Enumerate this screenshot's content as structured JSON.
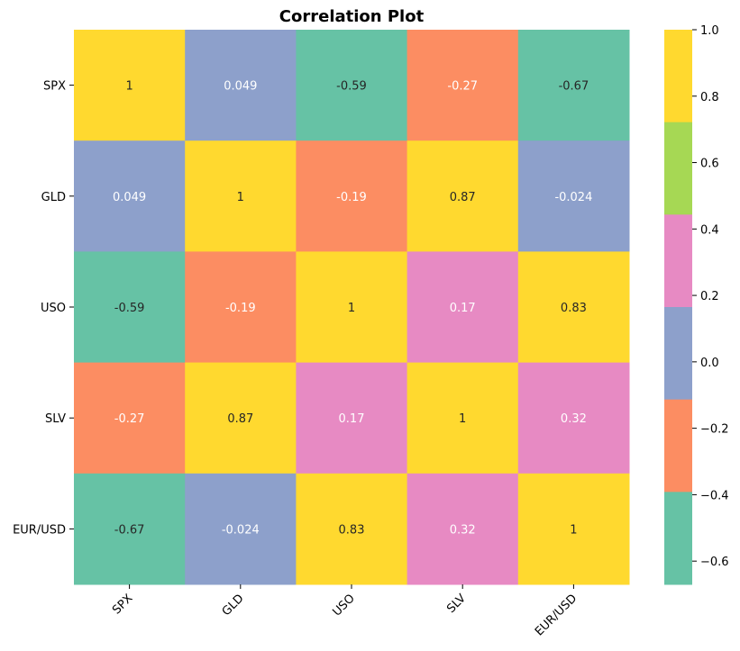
{
  "chart_data": {
    "type": "heatmap",
    "title": "Correlation Plot",
    "categories": [
      "SPX",
      "GLD",
      "USO",
      "SLV",
      "EUR/USD"
    ],
    "rows": [
      "SPX",
      "GLD",
      "USO",
      "SLV",
      "EUR/USD"
    ],
    "values": [
      [
        1,
        0.049,
        -0.59,
        -0.27,
        -0.67
      ],
      [
        0.049,
        1,
        -0.19,
        0.87,
        -0.024
      ],
      [
        -0.59,
        -0.19,
        1,
        0.17,
        0.83
      ],
      [
        -0.27,
        0.87,
        0.17,
        1,
        0.32
      ],
      [
        -0.67,
        -0.024,
        0.83,
        0.32,
        1
      ]
    ],
    "labels": [
      [
        "1",
        "0.049",
        "-0.59",
        "-0.27",
        "-0.67"
      ],
      [
        "0.049",
        "1",
        "-0.19",
        "0.87",
        "-0.024"
      ],
      [
        "-0.59",
        "-0.19",
        "1",
        "0.17",
        "0.83"
      ],
      [
        "-0.27",
        "0.87",
        "0.17",
        "1",
        "0.32"
      ],
      [
        "-0.67",
        "-0.024",
        "0.83",
        "0.32",
        "1"
      ]
    ],
    "colormap": {
      "vmin": -0.67,
      "vmax": 1.0,
      "colors": [
        "#66c2a5",
        "#fc8d62",
        "#8da0cb",
        "#e78ac3",
        "#a6d854",
        "#ffd92f"
      ],
      "text_colors": [
        "#262626",
        "#ffffff",
        "#ffffff",
        "#ffffff",
        "#262626",
        "#262626"
      ]
    },
    "colorbar": {
      "ticks": [
        1.0,
        0.8,
        0.6,
        0.4,
        0.2,
        0.0,
        -0.2,
        -0.4,
        -0.6
      ],
      "tick_labels": [
        "1.0",
        "0.8",
        "0.6",
        "0.4",
        "0.2",
        "0.0",
        "−0.2",
        "−0.4",
        "−0.6"
      ]
    },
    "x_tick_rotation": "45 degrees",
    "grid": false
  }
}
